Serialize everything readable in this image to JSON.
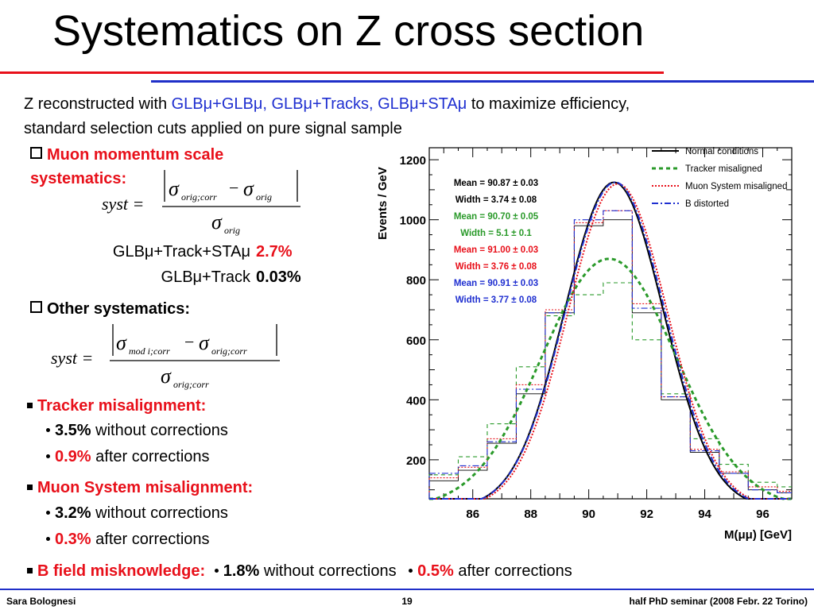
{
  "title": "Systematics on Z cross section",
  "intro": {
    "line1_a": "Z reconstructed with ",
    "line1_b": "GLBμ+GLBμ, GLBμ+Tracks, GLBμ+STAμ",
    "line1_c": " to maximize efficiency,",
    "line2": "standard selection cuts applied on pure signal sample"
  },
  "muon_scale": {
    "heading_1": "Muon momentum scale",
    "heading_2": "systematics:",
    "formula": {
      "lhs": "syst =",
      "num_a": "σ",
      "num_a_sub": "orig;corr",
      "minus": "−",
      "num_b": "σ",
      "num_b_sub": "orig",
      "den": "σ",
      "den_sub": "orig"
    },
    "rows": [
      {
        "label": "GLBμ+Track+STAμ",
        "value": "2.7%"
      },
      {
        "label": "GLBμ+Track",
        "value": "0.03%"
      }
    ]
  },
  "other": {
    "heading": "Other systematics:",
    "formula": {
      "lhs": "syst =",
      "num_a": "σ",
      "num_a_sub": "mod i;corr",
      "minus": "−",
      "num_b": "σ",
      "num_b_sub": "orig;corr",
      "den": "σ",
      "den_sub": "orig;corr"
    }
  },
  "tracker": {
    "heading": "Tracker misalignment:",
    "items": [
      {
        "value": "3.5%",
        "text": " without corrections"
      },
      {
        "value": "0.9%",
        "text": " after corrections"
      }
    ]
  },
  "muon_system": {
    "heading": "Muon System misalignment:",
    "items": [
      {
        "value": "3.2%",
        "text": " without corrections"
      },
      {
        "value": "0.3%",
        "text": " after corrections"
      }
    ]
  },
  "bfield": {
    "heading": "B field misknowledge:",
    "v1": "1.8%",
    "t1": " without corrections",
    "v2": "0.5%",
    "t2": " after corrections"
  },
  "footer": {
    "left": "Sara Bolognesi",
    "center": "19",
    "right": "half PhD seminar (2008 Febr. 22 Torino)"
  },
  "colors": {
    "normal": "#000000",
    "tracker": "#2a9a2a",
    "muon": "#e8101a",
    "bfield": "#1f2fd0"
  },
  "chart_data": {
    "type": "line",
    "xlabel": "M(μμ) [GeV]",
    "ylabel": "Events / GeV",
    "xlim": [
      84.5,
      97
    ],
    "ylim": [
      70,
      1240
    ],
    "xticks": [
      86,
      88,
      90,
      92,
      94,
      96
    ],
    "yticks": [
      200,
      400,
      600,
      800,
      1000,
      1200
    ],
    "bin_edges": [
      84.5,
      85.5,
      86.5,
      87.5,
      88.5,
      89.5,
      90.5,
      91.5,
      92.5,
      93.5,
      94.5,
      95.5,
      96.5,
      97
    ],
    "series": [
      {
        "name": "Normal conditions",
        "style": "solid",
        "mean": 90.87,
        "width": 3.74,
        "peak": 1085,
        "hist": [
          130,
          165,
          255,
          420,
          690,
          980,
          1000,
          690,
          400,
          225,
          155,
          100,
          90
        ]
      },
      {
        "name": "Tracker misaligned",
        "style": "dashed",
        "mean": 90.7,
        "width": 5.1,
        "peak": 830,
        "hist": [
          150,
          210,
          320,
          510,
          680,
          750,
          790,
          600,
          420,
          270,
          185,
          125,
          110
        ]
      },
      {
        "name": "Muon System misaligned",
        "style": "dotted",
        "mean": 91.0,
        "width": 3.76,
        "peak": 1080,
        "hist": [
          140,
          175,
          270,
          450,
          700,
          990,
          1030,
          720,
          410,
          235,
          160,
          110,
          95
        ]
      },
      {
        "name": "B distorted",
        "style": "dashdot",
        "mean": 90.91,
        "width": 3.77,
        "peak": 1085,
        "hist": [
          155,
          180,
          260,
          435,
          690,
          1000,
          1030,
          705,
          410,
          230,
          155,
          100,
          90
        ]
      }
    ],
    "stats": [
      {
        "mean": "Mean = 90.87 ± 0.03",
        "width": "Width = 3.74 ± 0.08",
        "color": "#000000"
      },
      {
        "mean": "Mean = 90.70 ± 0.05",
        "width": "Width = 5.1 ± 0.1",
        "color": "#2a9a2a"
      },
      {
        "mean": "Mean = 91.00 ± 0.03",
        "width": "Width = 3.76 ± 0.08",
        "color": "#e8101a"
      },
      {
        "mean": "Mean = 90.91 ± 0.03",
        "width": "Width = 3.77 ± 0.08",
        "color": "#1f2fd0"
      }
    ]
  }
}
